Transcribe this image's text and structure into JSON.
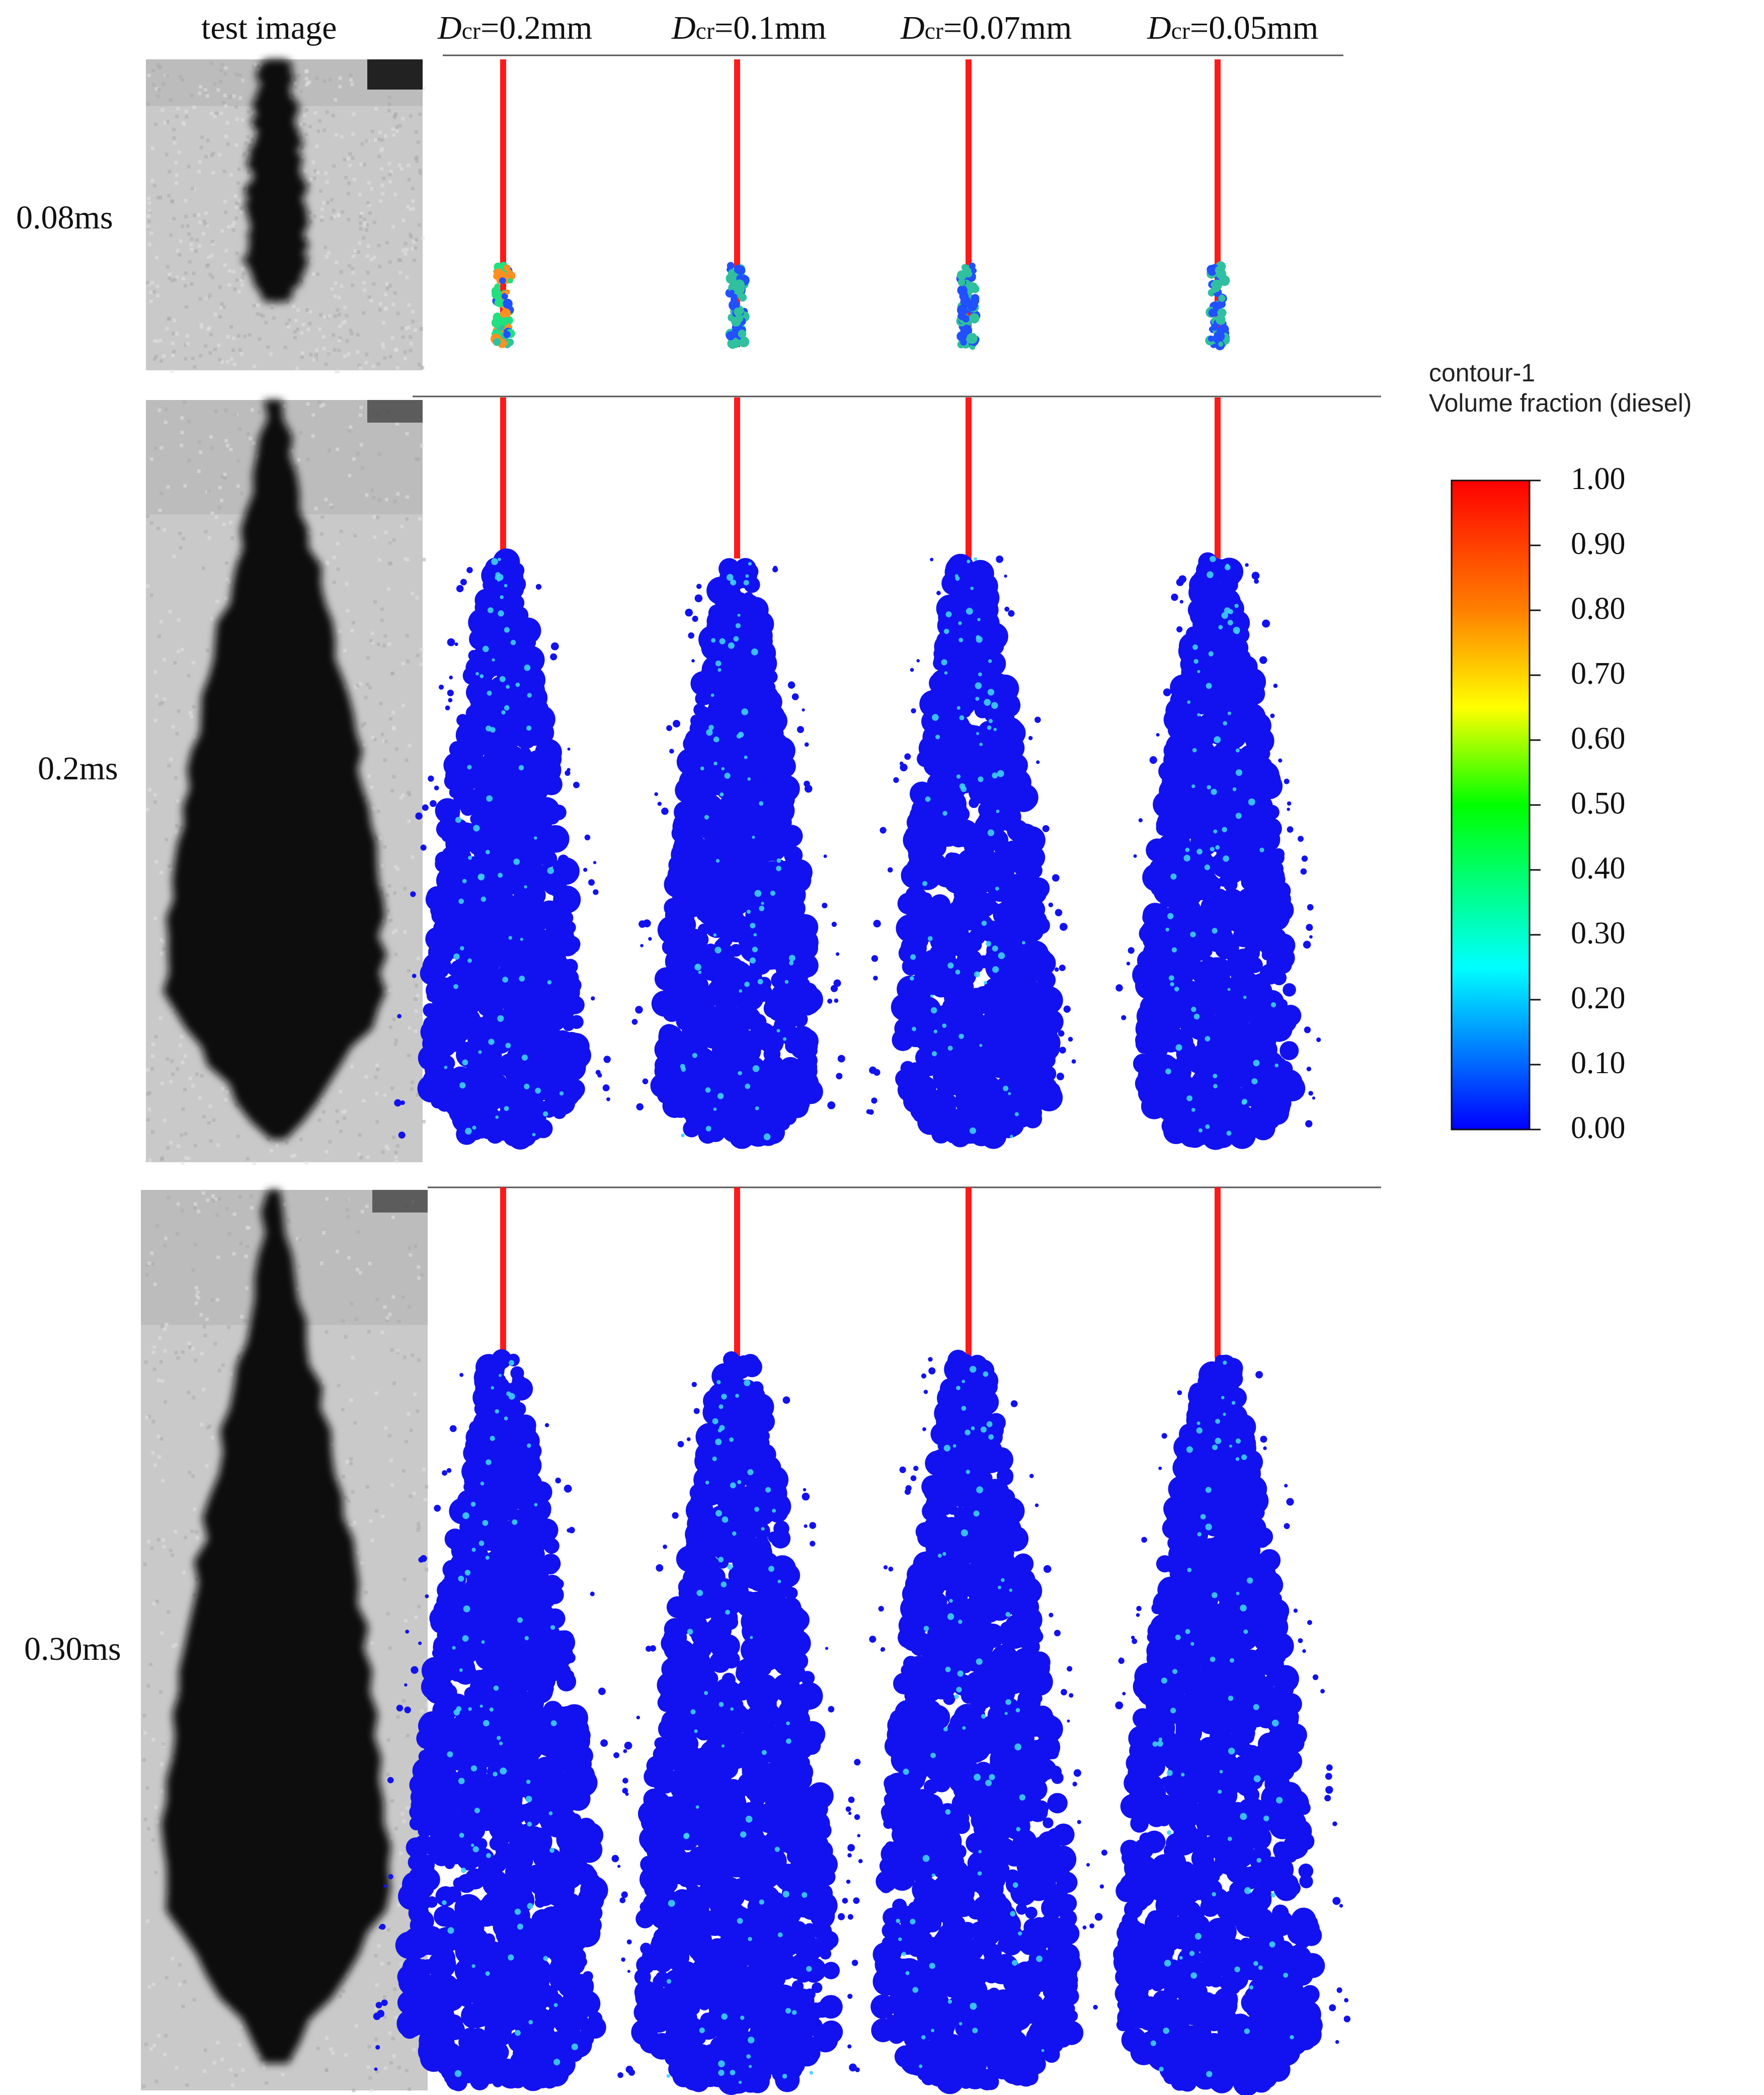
{
  "headers": {
    "test": "test image",
    "cases": [
      {
        "sym": "D",
        "sub": "cr",
        "val": "=0.2mm"
      },
      {
        "sym": "D",
        "sub": "cr",
        "val": "=0.1mm"
      },
      {
        "sym": "D",
        "sub": "cr",
        "val": "=0.07mm"
      },
      {
        "sym": "D",
        "sub": "cr",
        "val": "=0.05mm"
      }
    ]
  },
  "rows": [
    "0.08ms",
    "0.2ms",
    "0.30ms"
  ],
  "colorbar": {
    "title1": "contour-1",
    "title2": "Volume fraction (diesel)",
    "ticks": [
      "1.00",
      "0.90",
      "0.80",
      "0.70",
      "0.60",
      "0.50",
      "0.40",
      "0.30",
      "0.20",
      "0.10",
      "0.00"
    ],
    "colors": [
      "#ff0000",
      "#ff8000",
      "#ffff00",
      "#00ff00",
      "#00ffff",
      "#0000ff"
    ]
  },
  "spray_colors": {
    "core": "#ff1a1a",
    "body": "#1212f0",
    "speck": "#3fd0ff",
    "grey_bg": "#c9c9c9",
    "shadow": "#0c0c0c"
  }
}
